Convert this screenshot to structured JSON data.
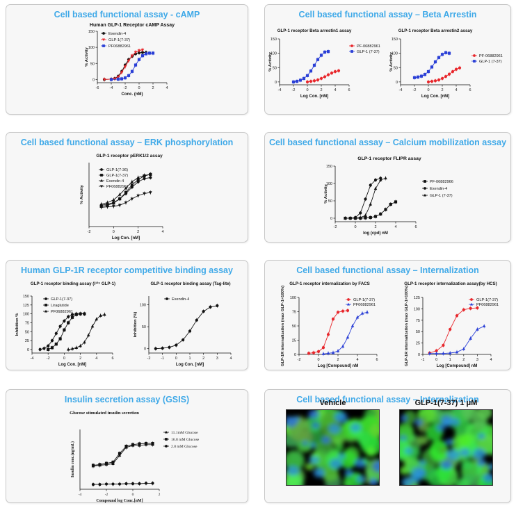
{
  "panels": [
    {
      "id": "p1",
      "title": "Cell based functional assay - cAMP"
    },
    {
      "id": "p2",
      "title": "Cell based functional assay – Beta Arrestin"
    },
    {
      "id": "p3",
      "title": "Cell based functional assay – ERK phosphorylation"
    },
    {
      "id": "p4",
      "title": "Cell based functional assay – Calcium mobilization assay"
    },
    {
      "id": "p5",
      "title": "Human GLP-1R receptor competitive binding assay"
    },
    {
      "id": "p6",
      "title": "Cell based functional assay – Internalization"
    },
    {
      "id": "p7",
      "title": "Insulin secretion assay (GSIS)"
    },
    {
      "id": "p8",
      "title": "Cell based functional assay – Internalization"
    }
  ],
  "images": [
    {
      "label": "Vehicle"
    },
    {
      "label": "GLP-1(7-37)  1 μM"
    }
  ],
  "colors": {
    "title": "#3fa9e8",
    "black": "#111111",
    "red": "#e8262b",
    "blue": "#2a3fd6"
  },
  "chart_data": [
    {
      "id": "camp",
      "panel": "p1",
      "type": "line",
      "title": "Human GLP-1 Receptor cAMP Assay",
      "xlabel": "Conc. (nM)",
      "ylabel": "% Activity",
      "xlim": [
        -6,
        4
      ],
      "ylim": [
        -10,
        150
      ],
      "xticks": [
        -6,
        -4,
        -2,
        0,
        2,
        4
      ],
      "yticks": [
        0,
        50,
        100,
        150
      ],
      "legend": "top-left",
      "series": [
        {
          "name": "Exendin-4",
          "color": "#111111",
          "marker": "circle",
          "x": [
            -5,
            -4,
            -3.5,
            -3,
            -2.5,
            -2,
            -1.5,
            -1,
            -0.5,
            0,
            0.5,
            1
          ],
          "y": [
            0,
            1,
            3,
            10,
            25,
            45,
            62,
            72,
            80,
            83,
            84,
            84
          ]
        },
        {
          "name": "GLP-1(7-37)",
          "color": "#e8262b",
          "marker": "triangle-down",
          "x": [
            -5,
            -4,
            -3.5,
            -3,
            -2.5,
            -2,
            -1.5,
            -1,
            -0.5,
            0,
            0.5
          ],
          "y": [
            0,
            1,
            2,
            8,
            22,
            40,
            58,
            74,
            85,
            90,
            92
          ]
        },
        {
          "name": "PF06882961",
          "color": "#2a3fd6",
          "marker": "square",
          "x": [
            -4,
            -3,
            -2.5,
            -2,
            -1.5,
            -1,
            -0.5,
            0,
            0.5,
            1,
            1.5,
            2
          ],
          "y": [
            0,
            1,
            2,
            5,
            12,
            25,
            45,
            62,
            74,
            80,
            82,
            82
          ]
        }
      ]
    },
    {
      "id": "barr1",
      "panel": "p2",
      "type": "line",
      "title": "GLP-1 receptor Beta arrestin1 assay",
      "xlabel": "Log Con. [nM]",
      "ylabel": "% Activity",
      "xlim": [
        -4,
        6
      ],
      "ylim": [
        -10,
        150
      ],
      "xticks": [
        -4,
        -2,
        0,
        2,
        4,
        6
      ],
      "yticks": [
        0,
        50,
        100,
        150
      ],
      "legend": "right",
      "series": [
        {
          "name": "PF-06882961",
          "color": "#e8262b",
          "marker": "circle",
          "x": [
            0,
            0.5,
            1,
            1.5,
            2,
            2.5,
            3,
            3.5,
            4,
            4.5
          ],
          "y": [
            0,
            2,
            4,
            7,
            12,
            18,
            25,
            31,
            36,
            39
          ]
        },
        {
          "name": "GLP-1 (7-37)",
          "color": "#2a3fd6",
          "marker": "square",
          "x": [
            -2,
            -1.5,
            -1,
            -0.5,
            0,
            0.5,
            1,
            1.5,
            2,
            2.5,
            3
          ],
          "y": [
            0,
            2,
            6,
            12,
            22,
            38,
            58,
            78,
            93,
            104,
            106
          ]
        }
      ]
    },
    {
      "id": "barr2",
      "panel": "p2",
      "type": "line",
      "title": "GLP-1 receptor Beta arrestin2 assay",
      "xlabel": "Log Con. [nM]",
      "ylabel": "% Activity",
      "xlim": [
        -4,
        6
      ],
      "ylim": [
        -10,
        150
      ],
      "xticks": [
        -4,
        -2,
        0,
        2,
        4,
        6
      ],
      "yticks": [
        0,
        50,
        100,
        150
      ],
      "legend": "right",
      "series": [
        {
          "name": "PF-06882961",
          "color": "#e8262b",
          "marker": "circle",
          "x": [
            0,
            0.5,
            1,
            1.5,
            2,
            2.5,
            3,
            3.5,
            4,
            4.5
          ],
          "y": [
            0,
            2,
            4,
            7,
            12,
            19,
            27,
            36,
            44,
            49
          ]
        },
        {
          "name": "GLP-1 (7-37)",
          "color": "#2a3fd6",
          "marker": "square",
          "x": [
            -2,
            -1.5,
            -1,
            -0.5,
            0,
            0.5,
            1,
            1.5,
            2,
            2.5,
            3
          ],
          "y": [
            15,
            17,
            20,
            26,
            36,
            52,
            70,
            85,
            96,
            102,
            100
          ]
        }
      ]
    },
    {
      "id": "erk",
      "panel": "p3",
      "type": "line",
      "title": "GLP-1 receptor pERK1/2 assay",
      "xlabel": "Log Con. [nM]",
      "ylabel": "% Activity",
      "xlim": [
        -2,
        4
      ],
      "ylim": [
        0,
        120
      ],
      "xticks": [
        -2,
        0,
        2,
        4
      ],
      "yticks": [],
      "legend": "top-left",
      "series": [
        {
          "name": "GLP-1(7-36)",
          "color": "#111111",
          "marker": "circle",
          "x": [
            -1,
            -0.5,
            0,
            0.5,
            1,
            1.5,
            2,
            2.5,
            3
          ],
          "y": [
            40,
            42,
            45,
            52,
            62,
            74,
            84,
            90,
            92
          ]
        },
        {
          "name": "GLP-1(7-37)",
          "color": "#111111",
          "marker": "square",
          "x": [
            -1,
            -0.5,
            0,
            0.5,
            1,
            1.5,
            2,
            2.5,
            3
          ],
          "y": [
            38,
            40,
            44,
            52,
            64,
            78,
            88,
            95,
            98
          ]
        },
        {
          "name": "Exendin-4",
          "color": "#111111",
          "marker": "triangle",
          "x": [
            -1,
            -0.5,
            0,
            0.5,
            1,
            1.5,
            2,
            2.5,
            3
          ],
          "y": [
            42,
            45,
            50,
            60,
            72,
            84,
            92,
            96,
            98
          ]
        },
        {
          "name": "PF06882961",
          "color": "#111111",
          "marker": "triangle-down",
          "x": [
            -1,
            -0.5,
            0,
            0.5,
            1,
            1.5,
            2,
            2.5,
            3
          ],
          "y": [
            36,
            37,
            38,
            40,
            45,
            52,
            58,
            62,
            64
          ]
        }
      ]
    },
    {
      "id": "flipr",
      "panel": "p4",
      "type": "line",
      "title": "GLP-1 receptor FLIPR assay",
      "xlabel": "log (cpd) nM",
      "ylabel": "% Activity",
      "xlim": [
        -2,
        6
      ],
      "ylim": [
        -10,
        150
      ],
      "xticks": [
        -2,
        0,
        2,
        4,
        6
      ],
      "yticks": [
        0,
        50,
        100,
        150
      ],
      "legend": "right",
      "series": [
        {
          "name": "PF-06882966",
          "color": "#111111",
          "marker": "square",
          "x": [
            -1,
            -0.5,
            0,
            0.5,
            1,
            1.5,
            2,
            2.5,
            3,
            3.5,
            4
          ],
          "y": [
            0,
            0,
            0,
            0,
            1,
            2,
            5,
            12,
            25,
            40,
            47
          ]
        },
        {
          "name": "Exendin-4",
          "color": "#111111",
          "marker": "circle",
          "x": [
            -0.5,
            0,
            0.5,
            1,
            1.5,
            2,
            2.5
          ],
          "y": [
            0,
            2,
            15,
            55,
            95,
            110,
            115
          ]
        },
        {
          "name": "GLP-1 (7-37)",
          "color": "#111111",
          "marker": "triangle",
          "x": [
            0,
            0.5,
            1,
            1.5,
            2,
            2.5,
            3
          ],
          "y": [
            0,
            2,
            8,
            40,
            85,
            110,
            115
          ]
        }
      ]
    },
    {
      "id": "bind1",
      "panel": "p5",
      "type": "line",
      "title": "GLP-1 receptor binding assay (I¹²⁵ GLP-1)",
      "xlabel": "Log Con. [nM]",
      "ylabel": "Inhibition %",
      "xlim": [
        -4,
        6
      ],
      "ylim": [
        -10,
        150
      ],
      "xticks": [
        -4,
        -2,
        0,
        2,
        4,
        6
      ],
      "yticks": [
        0,
        25,
        50,
        75,
        100,
        125,
        150
      ],
      "legend": "top-left",
      "series": [
        {
          "name": "GLP-1(7-37)",
          "color": "#111111",
          "marker": "circle",
          "x": [
            -3,
            -2.5,
            -2,
            -1.5,
            -1,
            -0.5,
            0,
            0.5,
            1,
            1.5,
            2,
            2.5
          ],
          "y": [
            0,
            3,
            10,
            25,
            45,
            65,
            80,
            92,
            98,
            100,
            100,
            100
          ]
        },
        {
          "name": "Liraglutide",
          "color": "#111111",
          "marker": "square",
          "x": [
            -2,
            -1.5,
            -1,
            -0.5,
            0,
            0.5,
            1,
            1.5,
            2,
            2.5
          ],
          "y": [
            0,
            5,
            15,
            30,
            55,
            75,
            90,
            98,
            100,
            100
          ]
        },
        {
          "name": "PF06882961",
          "color": "#111111",
          "marker": "triangle",
          "x": [
            0.5,
            1,
            1.5,
            2,
            2.5,
            3,
            3.5,
            4,
            4.5,
            5
          ],
          "y": [
            0,
            2,
            5,
            10,
            20,
            40,
            65,
            85,
            95,
            98
          ]
        }
      ]
    },
    {
      "id": "bind2",
      "panel": "p5",
      "type": "line",
      "title": "GLP-1 receptor binding assay (Tag-lite)",
      "xlabel": "Log Con. [nM]",
      "ylabel": "Inhibition (%)",
      "xlim": [
        -2,
        4
      ],
      "ylim": [
        -10,
        120
      ],
      "xticks": [
        -2,
        -1,
        0,
        1,
        2,
        3,
        4
      ],
      "yticks": [
        0,
        50,
        100
      ],
      "legend": "top-left",
      "series": [
        {
          "name": "Exendin-4",
          "color": "#111111",
          "marker": "circle",
          "x": [
            -1.5,
            -1,
            -0.5,
            0,
            0.5,
            1,
            1.5,
            2,
            2.5,
            3
          ],
          "y": [
            0,
            1,
            3,
            8,
            20,
            40,
            65,
            85,
            95,
            98
          ]
        }
      ]
    },
    {
      "id": "int1",
      "panel": "p6",
      "type": "line",
      "title": "GLP-1 receptor internalization by FACS",
      "xlabel": "Log [Compound] nM",
      "ylabel": "GLP-1R internalization (max GLP-1=100%)",
      "xlim": [
        -2,
        6
      ],
      "ylim": [
        0,
        100
      ],
      "xticks": [
        -2,
        0,
        2,
        4,
        6
      ],
      "yticks": [
        0,
        25,
        50,
        75,
        100
      ],
      "legend": "top-right",
      "series": [
        {
          "name": "GLP-1(7-37)",
          "color": "#e8262b",
          "marker": "circle",
          "x": [
            -1,
            -0.5,
            0,
            0.5,
            1,
            1.5,
            2,
            2.5,
            3
          ],
          "y": [
            2,
            3,
            5,
            12,
            35,
            62,
            74,
            76,
            77
          ]
        },
        {
          "name": "PF06882961",
          "color": "#2a3fd6",
          "marker": "triangle",
          "x": [
            0.5,
            1,
            1.5,
            2,
            2.5,
            3,
            3.5,
            4,
            4.5,
            5
          ],
          "y": [
            1,
            2,
            3,
            6,
            14,
            30,
            50,
            65,
            72,
            74
          ]
        }
      ]
    },
    {
      "id": "int2",
      "panel": "p6",
      "type": "line",
      "title": "GLP-1 receptor internalization assay(by HCS)",
      "xlabel": "Log [Compound] nM",
      "ylabel": "GLP-1R internalization (max GLP-1=100%)",
      "xlim": [
        -1,
        4
      ],
      "ylim": [
        0,
        125
      ],
      "xticks": [
        -1,
        0,
        1,
        2,
        3,
        4
      ],
      "yticks": [
        0,
        25,
        50,
        75,
        100,
        125
      ],
      "legend": "top-right",
      "series": [
        {
          "name": "GLP-1(7-37)",
          "color": "#e8262b",
          "marker": "circle",
          "x": [
            -0.5,
            0,
            0.5,
            1,
            1.5,
            2,
            2.5,
            3
          ],
          "y": [
            3,
            8,
            20,
            55,
            85,
            98,
            101,
            102
          ]
        },
        {
          "name": "PF06882961",
          "color": "#2a3fd6",
          "marker": "triangle",
          "x": [
            -0.5,
            0,
            0.5,
            1,
            1.5,
            2,
            2.5,
            3,
            3.5
          ],
          "y": [
            2,
            2,
            2,
            3,
            5,
            12,
            35,
            55,
            62
          ]
        }
      ]
    },
    {
      "id": "gsis",
      "panel": "p7",
      "type": "line",
      "title": "Glucose stimulated insulin secretion",
      "xlabel": "Compound log Conc.[nM]",
      "ylabel": "Insulin conc.(ng/mL)",
      "xlim": [
        -4,
        2
      ],
      "ylim": [
        0,
        150
      ],
      "xticks": [
        -4,
        -2,
        0,
        2
      ],
      "yticks": [],
      "legend": "top-right",
      "series": [
        {
          "name": "11.1mM Glucose",
          "color": "#111111",
          "marker": "triangle",
          "x": [
            -3,
            -2.5,
            -2,
            -1.5,
            -1,
            -0.5,
            0,
            0.5,
            1,
            1.5
          ],
          "y": [
            58,
            60,
            62,
            64,
            85,
            105,
            110,
            110,
            112,
            112
          ]
        },
        {
          "name": "16.8 mM Glucose",
          "color": "#111111",
          "marker": "square",
          "x": [
            -3,
            -2.5,
            -2,
            -1.5,
            -1,
            -0.5,
            0,
            0.5,
            1,
            1.5
          ],
          "y": [
            60,
            62,
            65,
            68,
            90,
            108,
            112,
            114,
            115,
            115
          ]
        },
        {
          "name": "2.8 mM Glucose",
          "color": "#111111",
          "marker": "circle",
          "x": [
            -3,
            -2.5,
            -2,
            -1.5,
            -1,
            -0.5,
            0,
            0.5,
            1,
            1.5
          ],
          "y": [
            12,
            12,
            13,
            13,
            13,
            14,
            14,
            14,
            15,
            15
          ]
        }
      ]
    }
  ]
}
